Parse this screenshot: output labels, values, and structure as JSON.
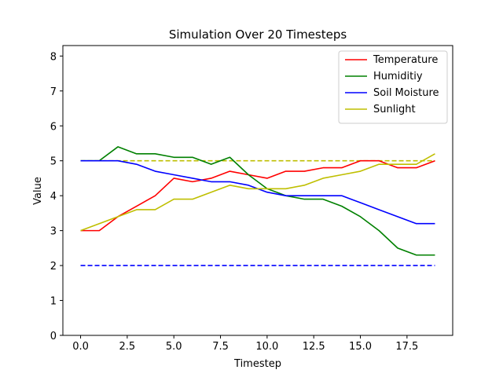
{
  "chart_data": {
    "type": "line",
    "title": "Simulation Over 20 Timesteps",
    "xlabel": "Timestep",
    "ylabel": "Value",
    "xlim": [
      -0.95,
      19.95
    ],
    "ylim": [
      0,
      8.3
    ],
    "x_ticks": [
      0.0,
      2.5,
      5.0,
      7.5,
      10.0,
      12.5,
      15.0,
      17.5
    ],
    "x_tick_labels": [
      "0.0",
      "2.5",
      "5.0",
      "7.5",
      "10.0",
      "12.5",
      "15.0",
      "17.5"
    ],
    "y_ticks": [
      0,
      1,
      2,
      3,
      4,
      5,
      6,
      7,
      8
    ],
    "y_tick_labels": [
      "0",
      "1",
      "2",
      "3",
      "4",
      "5",
      "6",
      "7",
      "8"
    ],
    "grid": false,
    "legend_position": "top-right",
    "x": [
      0,
      1,
      2,
      3,
      4,
      5,
      6,
      7,
      8,
      9,
      10,
      11,
      12,
      13,
      14,
      15,
      16,
      17,
      18,
      19
    ],
    "series": [
      {
        "name": "Temperature",
        "color": "#ff0000",
        "values": [
          3.0,
          3.0,
          3.4,
          3.7,
          4.0,
          4.5,
          4.4,
          4.5,
          4.7,
          4.6,
          4.5,
          4.7,
          4.7,
          4.8,
          4.8,
          5.0,
          5.0,
          4.8,
          4.8,
          5.0
        ]
      },
      {
        "name": "Humiditiy",
        "color": "#008000",
        "values": [
          5.0,
          5.0,
          5.4,
          5.2,
          5.2,
          5.1,
          5.1,
          4.9,
          5.1,
          4.6,
          4.2,
          4.0,
          3.9,
          3.9,
          3.7,
          3.4,
          3.0,
          2.5,
          2.3,
          2.3
        ]
      },
      {
        "name": "Soil Moisture",
        "color": "#0000ff",
        "values": [
          5.0,
          5.0,
          5.0,
          4.9,
          4.7,
          4.6,
          4.5,
          4.4,
          4.4,
          4.3,
          4.1,
          4.0,
          4.0,
          4.0,
          4.0,
          3.8,
          3.6,
          3.4,
          3.2,
          3.2
        ]
      },
      {
        "name": "Sunlight",
        "color": "#bfbf00",
        "values": [
          3.0,
          3.2,
          3.4,
          3.6,
          3.6,
          3.9,
          3.9,
          4.1,
          4.3,
          4.2,
          4.2,
          4.2,
          4.3,
          4.5,
          4.6,
          4.7,
          4.9,
          4.9,
          4.9,
          5.2
        ]
      }
    ],
    "reference_lines": [
      {
        "color": "#0000ff",
        "style": "dashed",
        "y": 2,
        "x_range": [
          0,
          19
        ]
      },
      {
        "color": "#bfbf00",
        "style": "dashed",
        "y": 5,
        "x_range": [
          0,
          19
        ]
      }
    ]
  }
}
